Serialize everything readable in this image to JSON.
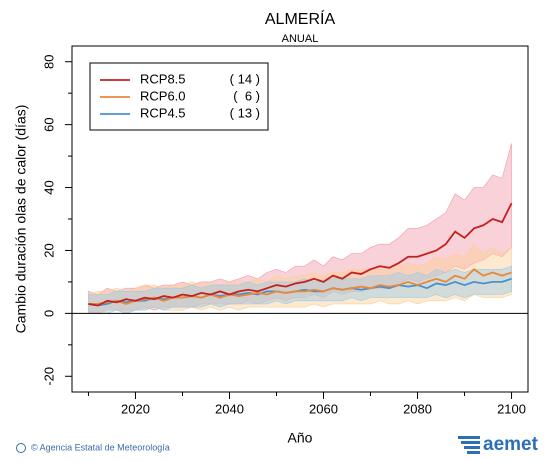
{
  "chart_data": {
    "type": "line",
    "title": "ALMERÍA",
    "subtitle": "ANUAL",
    "ylabel": "Cambio duración olas de calor (días)",
    "xlabel": "Año",
    "x": [
      2010,
      2012,
      2014,
      2016,
      2018,
      2020,
      2022,
      2024,
      2026,
      2028,
      2030,
      2032,
      2034,
      2036,
      2038,
      2040,
      2042,
      2044,
      2046,
      2048,
      2050,
      2052,
      2054,
      2056,
      2058,
      2060,
      2062,
      2064,
      2066,
      2068,
      2070,
      2072,
      2074,
      2076,
      2078,
      2080,
      2082,
      2084,
      2086,
      2088,
      2090,
      2092,
      2094,
      2096,
      2098,
      2100
    ],
    "series": [
      {
        "name": "RCP8.5",
        "count_label": "( 14 )",
        "color": "#c4201c",
        "band_color": "#f29aab",
        "values": [
          3,
          2.5,
          4,
          3.5,
          4.5,
          4,
          5,
          4.5,
          5.5,
          5,
          6,
          5.5,
          6.5,
          6,
          7,
          6,
          7,
          7.5,
          7,
          8,
          9,
          8.5,
          9.5,
          10,
          11,
          10,
          12,
          11,
          13,
          12.5,
          14,
          15,
          14.5,
          16,
          18,
          18,
          19,
          20,
          22,
          26,
          24,
          27,
          28,
          30,
          29,
          35
        ],
        "upper": [
          7,
          6,
          8,
          7,
          8,
          8,
          9,
          8,
          9,
          9,
          10,
          9,
          10,
          10,
          11,
          10,
          11,
          12,
          11,
          13,
          14,
          13,
          15,
          15,
          17,
          15,
          18,
          17,
          19,
          19,
          21,
          22,
          22,
          24,
          27,
          27,
          28,
          30,
          32,
          38,
          36,
          40,
          40,
          44,
          43,
          54
        ],
        "lower": [
          0,
          0,
          1,
          1,
          1,
          1,
          2,
          1,
          2,
          2,
          2,
          2,
          3,
          3,
          3,
          3,
          3,
          4,
          3,
          4,
          5,
          4,
          5,
          5,
          6,
          5,
          7,
          6,
          7,
          7,
          8,
          8,
          8,
          9,
          11,
          10,
          11,
          12,
          13,
          15,
          14,
          16,
          17,
          19,
          18,
          21
        ]
      },
      {
        "name": "RCP6.0",
        "count_label": "(  6 )",
        "color": "#e8883a",
        "band_color": "#fbcf95",
        "values": [
          3,
          3,
          3.5,
          4,
          3,
          4,
          4.5,
          5,
          4,
          5,
          5,
          5.5,
          5,
          6,
          5,
          6,
          5.5,
          6,
          6.5,
          6,
          7,
          6.5,
          7,
          7,
          7.5,
          7,
          8,
          7.5,
          8,
          8.5,
          8,
          9,
          8.5,
          9,
          10,
          9,
          10,
          11,
          10,
          12,
          11,
          14,
          12,
          13,
          12,
          13
        ],
        "upper": [
          6,
          7,
          7,
          8,
          7,
          8,
          9,
          9,
          8,
          9,
          9,
          10,
          9,
          10,
          9,
          10,
          10,
          10,
          11,
          10,
          12,
          11,
          12,
          12,
          13,
          12,
          13,
          13,
          14,
          14,
          14,
          15,
          14,
          15,
          16,
          15,
          16,
          18,
          17,
          19,
          18,
          22,
          19,
          21,
          19,
          21
        ],
        "lower": [
          0,
          0,
          1,
          1,
          0,
          1,
          1,
          2,
          1,
          1,
          1,
          2,
          1,
          2,
          1,
          2,
          1,
          2,
          2,
          2,
          2,
          2,
          2,
          2,
          3,
          2,
          3,
          3,
          3,
          3,
          3,
          4,
          3,
          3,
          4,
          3,
          4,
          4,
          4,
          5,
          4,
          6,
          5,
          5,
          5,
          6
        ]
      },
      {
        "name": "RCP4.5",
        "count_label": "( 13 )",
        "color": "#4a90cc",
        "band_color": "#9ccbe6",
        "values": [
          3,
          2.5,
          3,
          4,
          3.5,
          4,
          4,
          5,
          4.5,
          5,
          5,
          5.5,
          5,
          6,
          5.5,
          6,
          6,
          6.5,
          6,
          7,
          7,
          6.5,
          7,
          7.5,
          7,
          7,
          8,
          7.5,
          8,
          7.5,
          8,
          8.5,
          8,
          9,
          8.5,
          9,
          8,
          9.5,
          9,
          10,
          9,
          10,
          9.5,
          10,
          10,
          11
        ],
        "upper": [
          6,
          6,
          6,
          7,
          7,
          7,
          7,
          8,
          8,
          8,
          8,
          9,
          8,
          9,
          9,
          9,
          9,
          10,
          9,
          10,
          10,
          10,
          10,
          11,
          10,
          10,
          11,
          11,
          11,
          11,
          12,
          12,
          12,
          13,
          12,
          13,
          12,
          14,
          13,
          14,
          13,
          14,
          14,
          14,
          14,
          15
        ],
        "lower": [
          0,
          0,
          0,
          1,
          0,
          1,
          1,
          2,
          1,
          2,
          2,
          2,
          2,
          3,
          2,
          3,
          3,
          3,
          3,
          3,
          4,
          3,
          4,
          4,
          4,
          4,
          4,
          4,
          5,
          4,
          5,
          5,
          5,
          5,
          5,
          5,
          5,
          6,
          5,
          6,
          5,
          6,
          6,
          6,
          6,
          7
        ]
      }
    ],
    "xlim": [
      2006.5,
      2103.5
    ],
    "xticks": [
      2020,
      2040,
      2060,
      2080,
      2100
    ],
    "xticks_minor": [
      2010,
      2030,
      2050,
      2070,
      2090
    ],
    "ylim": [
      -25,
      85
    ],
    "yticks": [
      -20,
      0,
      20,
      40,
      60,
      80
    ],
    "yticks_minor": [
      -10,
      10,
      30,
      50,
      70
    ],
    "zero_line": 0,
    "legend": "upper left"
  },
  "footer": {
    "credit": "© Agencia Estatal de Meteorología",
    "logo": "aemet"
  }
}
